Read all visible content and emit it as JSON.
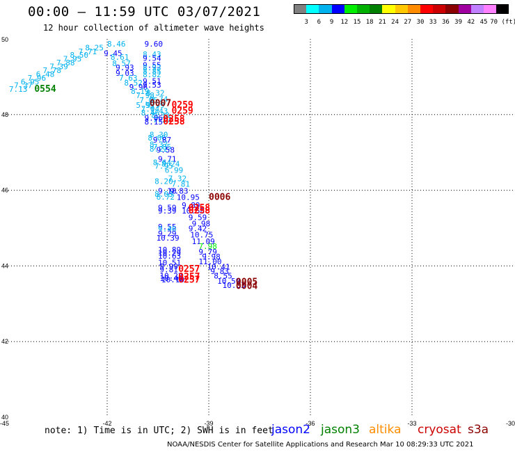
{
  "header": {
    "title": "00:00 – 11:59 UTC 03/07/2021",
    "subtitle": "12 hour collection of altimeter wave heights"
  },
  "colorbar": {
    "labels": [
      "3",
      "6",
      "9",
      "12",
      "15",
      "18",
      "21",
      "24",
      "27",
      "30",
      "33",
      "36",
      "39",
      "42",
      "45",
      "70 (ft)"
    ],
    "colors": [
      "#808080",
      "#00ffff",
      "#00b2ee",
      "#0000ff",
      "#00ee00",
      "#00b000",
      "#008000",
      "#ffff00",
      "#ffc800",
      "#ff8c00",
      "#ff0000",
      "#cc0000",
      "#8b0000",
      "#a000a0",
      "#c080ff",
      "#ff80ff",
      "#000000"
    ]
  },
  "axes": {
    "lon_ticks": [
      "-45",
      "-42",
      "-39",
      "-36",
      "-33",
      "-30"
    ],
    "lat_ticks": [
      "50",
      "48",
      "46",
      "44",
      "42",
      "40"
    ],
    "lat_tick_48_label": "48",
    "xlim": [
      -45,
      -30
    ],
    "ylim": [
      40,
      50
    ]
  },
  "satellites": [
    {
      "name": "jason2",
      "color": "#0000ff"
    },
    {
      "name": "jason3",
      "color": "#008000"
    },
    {
      "name": "altika",
      "color": "#ff8c00"
    },
    {
      "name": "cryosat",
      "color": "#cc0000"
    },
    {
      "name": "s3a",
      "color": "#8b0000"
    }
  ],
  "chart_data": {
    "type": "scatter",
    "title": "00:00 – 11:59 UTC 03/07/2021",
    "subtitle": "12 hour collection of altimeter wave heights",
    "xlim": [
      -45,
      -30
    ],
    "ylim": [
      40,
      50
    ],
    "wave_heights": [
      {
        "lon": -42.0,
        "lat": 49.8,
        "v": "8.46",
        "c": "#00b2ee"
      },
      {
        "lon": -42.65,
        "lat": 49.7,
        "v": "8.25",
        "c": "#00b2ee"
      },
      {
        "lon": -42.85,
        "lat": 49.6,
        "v": "7.71",
        "c": "#00b2ee"
      },
      {
        "lon": -43.1,
        "lat": 49.5,
        "v": "8.50",
        "c": "#00b2ee"
      },
      {
        "lon": -43.3,
        "lat": 49.4,
        "v": "7.95",
        "c": "#00b2ee"
      },
      {
        "lon": -43.5,
        "lat": 49.3,
        "v": "7.88",
        "c": "#00b2ee"
      },
      {
        "lon": -43.7,
        "lat": 49.2,
        "v": "7.39",
        "c": "#00b2ee"
      },
      {
        "lon": -43.9,
        "lat": 49.1,
        "v": "7.78",
        "c": "#00b2ee"
      },
      {
        "lon": -44.1,
        "lat": 49.0,
        "v": "6.48",
        "c": "#00b2ee"
      },
      {
        "lon": -44.35,
        "lat": 48.9,
        "v": "7.96",
        "c": "#00b2ee"
      },
      {
        "lon": -44.55,
        "lat": 48.8,
        "v": "6.95",
        "c": "#00b2ee"
      },
      {
        "lon": -44.75,
        "lat": 48.7,
        "v": "7.37",
        "c": "#00b2ee"
      },
      {
        "lon": -44.9,
        "lat": 48.6,
        "v": "7.13",
        "c": "#00b2ee"
      },
      {
        "lon": -40.9,
        "lat": 49.8,
        "v": "9.60",
        "c": "#0000ff"
      },
      {
        "lon": -42.1,
        "lat": 49.55,
        "v": "9.45",
        "c": "#0000ff"
      },
      {
        "lon": -41.9,
        "lat": 49.45,
        "v": "8.61",
        "c": "#00b2ee"
      },
      {
        "lon": -40.95,
        "lat": 49.52,
        "v": "8.43",
        "c": "#00b2ee"
      },
      {
        "lon": -40.95,
        "lat": 49.42,
        "v": "9.54",
        "c": "#0000ff"
      },
      {
        "lon": -41.85,
        "lat": 49.28,
        "v": "8.57",
        "c": "#00b2ee"
      },
      {
        "lon": -40.95,
        "lat": 49.24,
        "v": "9.55",
        "c": "#0000ff"
      },
      {
        "lon": -41.75,
        "lat": 49.17,
        "v": "9.93",
        "c": "#0000ff"
      },
      {
        "lon": -40.95,
        "lat": 49.17,
        "v": "8.93",
        "c": "#00b2ee"
      },
      {
        "lon": -40.95,
        "lat": 49.07,
        "v": "8.85",
        "c": "#00b2ee"
      },
      {
        "lon": -41.75,
        "lat": 49.03,
        "v": "9.03",
        "c": "#0000ff"
      },
      {
        "lon": -40.95,
        "lat": 48.99,
        "v": "8.82",
        "c": "#00b2ee"
      },
      {
        "lon": -41.65,
        "lat": 48.9,
        "v": "7.63",
        "c": "#00b2ee"
      },
      {
        "lon": -40.95,
        "lat": 48.81,
        "v": "9.51",
        "c": "#0000ff"
      },
      {
        "lon": -41.5,
        "lat": 48.77,
        "v": "8.52",
        "c": "#00b2ee"
      },
      {
        "lon": -40.95,
        "lat": 48.71,
        "v": "9.53",
        "c": "#0000ff"
      },
      {
        "lon": -41.35,
        "lat": 48.66,
        "v": "9.96",
        "c": "#0000ff"
      },
      {
        "lon": -41.3,
        "lat": 48.55,
        "v": "8.19",
        "c": "#00b2ee"
      },
      {
        "lon": -40.85,
        "lat": 48.5,
        "v": "8.32",
        "c": "#00b2ee"
      },
      {
        "lon": -41.15,
        "lat": 48.44,
        "v": "7.98",
        "c": "#00b2ee"
      },
      {
        "lon": -40.75,
        "lat": 48.34,
        "v": "9.74",
        "c": "#00b2ee"
      },
      {
        "lon": -41.05,
        "lat": 48.31,
        "v": "7.05",
        "c": "#00b2ee"
      },
      {
        "lon": -41.15,
        "lat": 48.18,
        "v": "5.93",
        "c": "#00b2ee"
      },
      {
        "lon": -40.85,
        "lat": 48.18,
        "v": "9.99",
        "c": "#00b2ee"
      },
      {
        "lon": -41.0,
        "lat": 48.08,
        "v": "7.04",
        "c": "#00b2ee"
      },
      {
        "lon": -40.75,
        "lat": 48.02,
        "v": "7.43",
        "c": "#00b2ee"
      },
      {
        "lon": -41.0,
        "lat": 47.98,
        "v": "8.46",
        "c": "#00b2ee"
      },
      {
        "lon": -40.7,
        "lat": 47.91,
        "v": "8.30",
        "c": "#00b2ee"
      },
      {
        "lon": -40.9,
        "lat": 47.84,
        "v": "9.06",
        "c": "#0000ff"
      },
      {
        "lon": -40.65,
        "lat": 47.79,
        "v": "7.27",
        "c": "#00b2ee"
      },
      {
        "lon": -40.9,
        "lat": 47.74,
        "v": "8.15",
        "c": "#0000ff"
      },
      {
        "lon": -40.75,
        "lat": 47.4,
        "v": "8.30",
        "c": "#00b2ee"
      },
      {
        "lon": -40.8,
        "lat": 47.32,
        "v": "8.06",
        "c": "#00b2ee"
      },
      {
        "lon": -40.65,
        "lat": 47.26,
        "v": "9.87",
        "c": "#0000ff"
      },
      {
        "lon": -40.75,
        "lat": 47.14,
        "v": "8.37",
        "c": "#00b2ee"
      },
      {
        "lon": -40.65,
        "lat": 47.08,
        "v": "7.85",
        "c": "#00b2ee"
      },
      {
        "lon": -40.75,
        "lat": 47.02,
        "v": "8.22",
        "c": "#00b2ee"
      },
      {
        "lon": -40.55,
        "lat": 46.99,
        "v": "9.58",
        "c": "#0000ff"
      },
      {
        "lon": -40.5,
        "lat": 46.76,
        "v": "9.71",
        "c": "#0000ff"
      },
      {
        "lon": -40.65,
        "lat": 46.66,
        "v": "8.64",
        "c": "#00b2ee"
      },
      {
        "lon": -40.4,
        "lat": 46.63,
        "v": "8.24",
        "c": "#00b2ee"
      },
      {
        "lon": -40.6,
        "lat": 46.57,
        "v": "7.95",
        "c": "#00b2ee"
      },
      {
        "lon": -40.3,
        "lat": 46.46,
        "v": "6.99",
        "c": "#00b2ee"
      },
      {
        "lon": -40.2,
        "lat": 46.24,
        "v": "7.32",
        "c": "#00b2ee"
      },
      {
        "lon": -40.6,
        "lat": 46.17,
        "v": "8.20",
        "c": "#00b2ee"
      },
      {
        "lon": -40.1,
        "lat": 46.09,
        "v": "7.81",
        "c": "#00b2ee"
      },
      {
        "lon": -40.5,
        "lat": 45.91,
        "v": "9.18",
        "c": "#0000ff"
      },
      {
        "lon": -40.15,
        "lat": 45.91,
        "v": "9.83",
        "c": "#0000ff"
      },
      {
        "lon": -40.6,
        "lat": 45.83,
        "v": "8.03",
        "c": "#00b2ee"
      },
      {
        "lon": -40.55,
        "lat": 45.75,
        "v": "8.72",
        "c": "#00b2ee"
      },
      {
        "lon": -39.95,
        "lat": 45.74,
        "v": "10.95",
        "c": "#0000ff"
      },
      {
        "lon": -39.8,
        "lat": 45.53,
        "v": "9.89",
        "c": "#0000ff"
      },
      {
        "lon": -40.5,
        "lat": 45.47,
        "v": "9.59",
        "c": "#0000ff"
      },
      {
        "lon": -40.5,
        "lat": 45.39,
        "v": "9.39",
        "c": "#0000ff"
      },
      {
        "lon": -39.8,
        "lat": 45.39,
        "v": "10.58",
        "c": "#0000ff"
      },
      {
        "lon": -39.6,
        "lat": 45.21,
        "v": "9.59",
        "c": "#0000ff"
      },
      {
        "lon": -39.5,
        "lat": 45.05,
        "v": "9.98",
        "c": "#0000ff"
      },
      {
        "lon": -40.5,
        "lat": 44.96,
        "v": "9.55",
        "c": "#0000ff"
      },
      {
        "lon": -40.5,
        "lat": 44.91,
        "v": "9.46",
        "c": "#00b2ee"
      },
      {
        "lon": -39.6,
        "lat": 44.92,
        "v": "9.42",
        "c": "#0000ff"
      },
      {
        "lon": -40.5,
        "lat": 44.79,
        "v": "9.29",
        "c": "#0000ff"
      },
      {
        "lon": -39.55,
        "lat": 44.75,
        "v": "10.75",
        "c": "#0000ff"
      },
      {
        "lon": -40.55,
        "lat": 44.67,
        "v": "10.39",
        "c": "#0000ff"
      },
      {
        "lon": -39.5,
        "lat": 44.58,
        "v": "11.09",
        "c": "#0000ff"
      },
      {
        "lon": -39.3,
        "lat": 44.45,
        "v": "7.98",
        "c": "#00ee00"
      },
      {
        "lon": -40.5,
        "lat": 44.36,
        "v": "10.89",
        "c": "#0000ff"
      },
      {
        "lon": -39.3,
        "lat": 44.3,
        "v": "9.79",
        "c": "#0000ff"
      },
      {
        "lon": -40.5,
        "lat": 44.27,
        "v": "10.29",
        "c": "#0000ff"
      },
      {
        "lon": -40.5,
        "lat": 44.19,
        "v": "10.63",
        "c": "#0000ff"
      },
      {
        "lon": -39.2,
        "lat": 44.17,
        "v": "9.98",
        "c": "#0000ff"
      },
      {
        "lon": -39.3,
        "lat": 44.04,
        "v": "11.00",
        "c": "#0000ff"
      },
      {
        "lon": -40.5,
        "lat": 44.02,
        "v": "10.51",
        "c": "#0000ff"
      },
      {
        "lon": -39.05,
        "lat": 43.91,
        "v": "10.41",
        "c": "#0000ff"
      },
      {
        "lon": -40.45,
        "lat": 43.92,
        "v": "9.99",
        "c": "#0000ff"
      },
      {
        "lon": -40.45,
        "lat": 43.83,
        "v": "9.81",
        "c": "#0000ff"
      },
      {
        "lon": -38.95,
        "lat": 43.79,
        "v": "9.83",
        "c": "#0000ff"
      },
      {
        "lon": -40.45,
        "lat": 43.67,
        "v": "10.22",
        "c": "#0000ff"
      },
      {
        "lon": -38.85,
        "lat": 43.67,
        "v": "8.55",
        "c": "#0000ff"
      },
      {
        "lon": -40.45,
        "lat": 43.6,
        "v": "10.40",
        "c": "#0000ff"
      },
      {
        "lon": -40.4,
        "lat": 43.57,
        "v": "10.10",
        "c": "#0000ff"
      },
      {
        "lon": -38.75,
        "lat": 43.53,
        "v": "10.59",
        "c": "#0000ff"
      },
      {
        "lon": -38.6,
        "lat": 43.42,
        "v": "10.03",
        "c": "#0000ff"
      }
    ],
    "pass_times": [
      {
        "lon": -44.15,
        "lat": 48.6,
        "v": "0554",
        "c": "#008000"
      },
      {
        "lon": -40.75,
        "lat": 48.23,
        "v": "0007",
        "c": "#8b0000"
      },
      {
        "lon": -40.1,
        "lat": 48.18,
        "v": "0259",
        "c": "#ff0000"
      },
      {
        "lon": -40.1,
        "lat": 48.02,
        "v": "0259",
        "c": "#ff0000"
      },
      {
        "lon": -40.35,
        "lat": 47.81,
        "v": "0258",
        "c": "#ff0000"
      },
      {
        "lon": -40.35,
        "lat": 47.74,
        "v": "0258",
        "c": "#ff0000"
      },
      {
        "lon": -39.0,
        "lat": 45.74,
        "v": "0006",
        "c": "#8b0000"
      },
      {
        "lon": -39.6,
        "lat": 45.46,
        "v": "0258",
        "c": "#ff0000"
      },
      {
        "lon": -39.6,
        "lat": 45.39,
        "v": "0258",
        "c": "#ff0000"
      },
      {
        "lon": -39.9,
        "lat": 43.84,
        "v": "0257",
        "c": "#ff0000"
      },
      {
        "lon": -39.9,
        "lat": 43.64,
        "v": "0257",
        "c": "#ff0000"
      },
      {
        "lon": -39.9,
        "lat": 43.56,
        "v": "0257",
        "c": "#ff0000"
      },
      {
        "lon": -38.2,
        "lat": 43.5,
        "v": "0005",
        "c": "#8b0000"
      },
      {
        "lon": -38.2,
        "lat": 43.39,
        "v": "0004",
        "c": "#8b0000"
      }
    ]
  },
  "footer": {
    "note": "note: 1) Time is in UTC; 2) SWH is in feet",
    "credit": "NOAA/NESDIS Center for Satellite Applications and Research   Mar 10 08:29:33 UTC 2021"
  }
}
